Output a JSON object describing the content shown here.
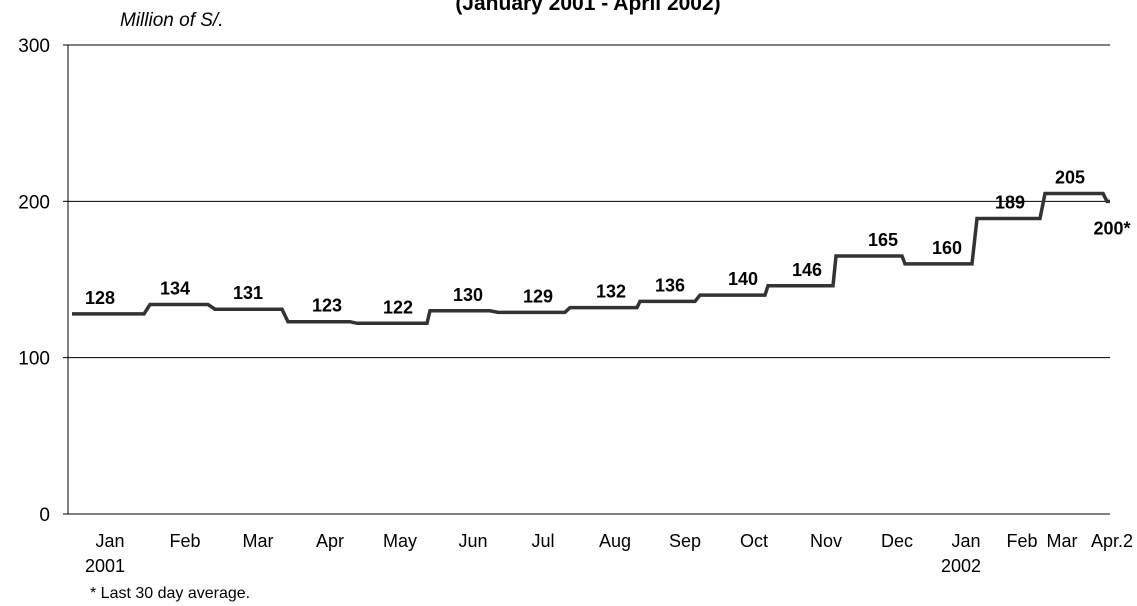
{
  "chart_data": {
    "type": "line",
    "title": "(January 2001 - April 2002)",
    "ylabel": "Million of S/.",
    "ylim": [
      0,
      300
    ],
    "yticks": [
      0,
      100,
      200,
      300
    ],
    "grid": true,
    "footnote": "* Last 30 day average.",
    "categories": [
      "Jan",
      "Feb",
      "Mar",
      "Apr",
      "May",
      "Jun",
      "Jul",
      "Aug",
      "Sep",
      "Oct",
      "Nov",
      "Dec",
      "Jan",
      "Feb",
      "Mar",
      "Apr.2"
    ],
    "category_years": {
      "0": "2001",
      "12": "2002"
    },
    "series": [
      {
        "values": [
          128,
          134,
          131,
          123,
          122,
          130,
          129,
          132,
          136,
          140,
          146,
          165,
          160,
          189,
          205,
          200
        ],
        "labels": [
          "128",
          "134",
          "131",
          "123",
          "122",
          "130",
          "129",
          "132",
          "136",
          "140",
          "146",
          "165",
          "160",
          "189",
          "205",
          "200*"
        ]
      }
    ],
    "style": {
      "line_color": "#333333",
      "grid_color": "#000000",
      "label_color": "#000000"
    }
  }
}
